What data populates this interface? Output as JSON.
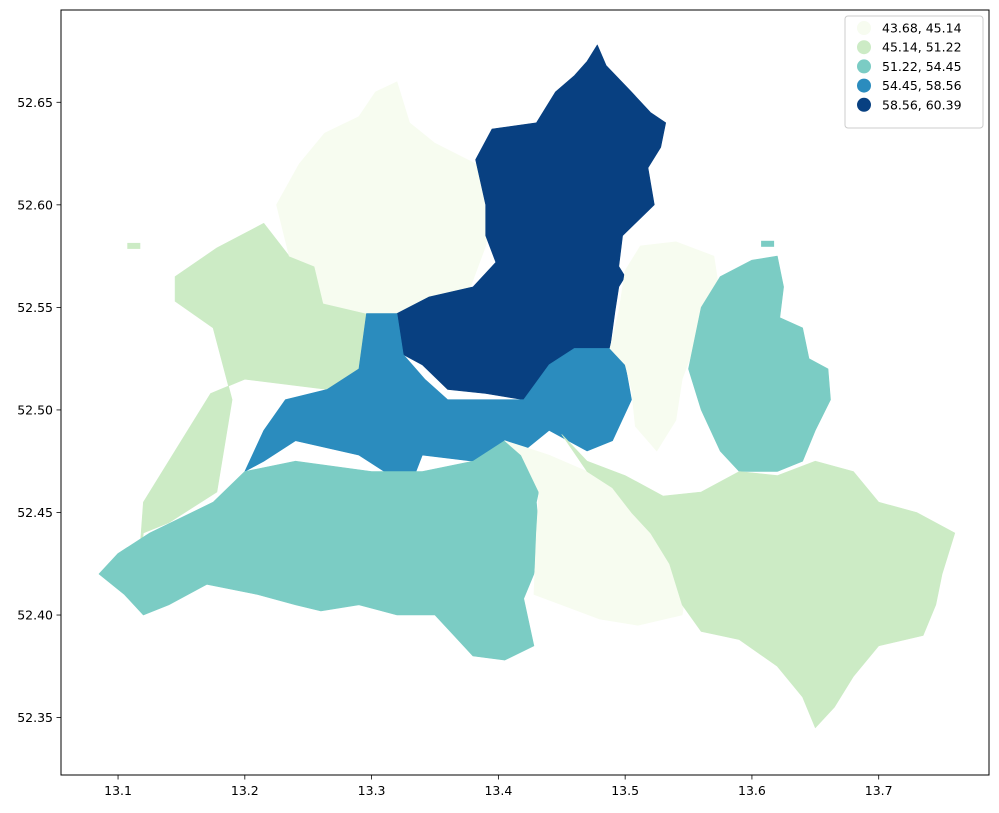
{
  "chart_data": {
    "type": "choropleth",
    "region": "Berlin",
    "xlim": [
      13.055,
      13.787
    ],
    "ylim": [
      52.322,
      52.695
    ],
    "x_ticks": [
      13.1,
      13.2,
      13.3,
      13.4,
      13.5,
      13.6,
      13.7
    ],
    "x_tick_labels": [
      "13.1",
      "13.2",
      "13.3",
      "13.4",
      "13.5",
      "13.6",
      "13.7"
    ],
    "y_ticks": [
      52.35,
      52.4,
      52.45,
      52.5,
      52.55,
      52.6,
      52.65
    ],
    "y_tick_labels": [
      "52.35",
      "52.40",
      "52.45",
      "52.50",
      "52.55",
      "52.60",
      "52.65"
    ],
    "grid": false,
    "legend_position": "top-right",
    "classes": [
      {
        "label": "43.68, 45.14",
        "range": [
          43.68,
          45.14
        ],
        "color": "#f7fcf0"
      },
      {
        "label": "45.14, 51.22",
        "range": [
          45.14,
          51.22
        ],
        "color": "#ccebc5"
      },
      {
        "label": "51.22, 54.45",
        "range": [
          51.22,
          54.45
        ],
        "color": "#7bccc4"
      },
      {
        "label": "54.45, 58.56",
        "range": [
          54.45,
          58.56
        ],
        "color": "#2b8cbe"
      },
      {
        "label": "58.56, 60.39",
        "range": [
          58.56,
          60.39
        ],
        "color": "#084081"
      }
    ],
    "regions": [
      {
        "class": 1,
        "outline": [
          [
            13.116,
            52.421
          ],
          [
            13.12,
            52.44
          ],
          [
            13.14,
            52.445
          ],
          [
            13.178,
            52.46
          ],
          [
            13.19,
            52.505
          ],
          [
            13.175,
            52.54
          ],
          [
            13.145,
            52.553
          ],
          [
            13.145,
            52.565
          ],
          [
            13.178,
            52.579
          ],
          [
            13.215,
            52.591
          ],
          [
            13.235,
            52.575
          ],
          [
            13.255,
            52.57
          ],
          [
            13.262,
            52.552
          ],
          [
            13.296,
            52.547
          ],
          [
            13.325,
            52.527
          ],
          [
            13.29,
            52.508
          ],
          [
            13.265,
            52.51
          ],
          [
            13.2,
            52.515
          ],
          [
            13.173,
            52.508
          ],
          [
            13.15,
            52.485
          ],
          [
            13.12,
            52.455
          ],
          [
            13.116,
            52.421
          ]
        ]
      },
      {
        "class": 0,
        "outline": [
          [
            13.225,
            52.6
          ],
          [
            13.243,
            52.62
          ],
          [
            13.263,
            52.635
          ],
          [
            13.29,
            52.643
          ],
          [
            13.303,
            52.655
          ],
          [
            13.32,
            52.66
          ],
          [
            13.33,
            52.64
          ],
          [
            13.35,
            52.63
          ],
          [
            13.382,
            52.62
          ],
          [
            13.4,
            52.612
          ],
          [
            13.39,
            52.58
          ],
          [
            13.378,
            52.56
          ],
          [
            13.37,
            52.55
          ],
          [
            13.34,
            52.546
          ],
          [
            13.32,
            52.547
          ],
          [
            13.296,
            52.547
          ],
          [
            13.262,
            52.552
          ],
          [
            13.255,
            52.57
          ],
          [
            13.235,
            52.575
          ],
          [
            13.225,
            52.6
          ]
        ]
      },
      {
        "class": 4,
        "outline": [
          [
            13.32,
            52.547
          ],
          [
            13.345,
            52.555
          ],
          [
            13.38,
            52.56
          ],
          [
            13.398,
            52.572
          ],
          [
            13.39,
            52.585
          ],
          [
            13.39,
            52.6
          ],
          [
            13.382,
            52.622
          ],
          [
            13.395,
            52.637
          ],
          [
            13.43,
            52.64
          ],
          [
            13.445,
            52.655
          ],
          [
            13.46,
            52.663
          ],
          [
            13.47,
            52.67
          ],
          [
            13.478,
            52.678
          ],
          [
            13.485,
            52.668
          ],
          [
            13.505,
            52.655
          ],
          [
            13.52,
            52.645
          ],
          [
            13.532,
            52.64
          ],
          [
            13.528,
            52.628
          ],
          [
            13.518,
            52.618
          ],
          [
            13.523,
            52.6
          ],
          [
            13.498,
            52.585
          ],
          [
            13.495,
            52.57
          ],
          [
            13.5,
            52.565
          ],
          [
            13.495,
            52.56
          ],
          [
            13.492,
            52.548
          ],
          [
            13.488,
            52.53
          ],
          [
            13.475,
            52.52
          ],
          [
            13.46,
            52.515
          ],
          [
            13.44,
            52.51
          ],
          [
            13.42,
            52.505
          ],
          [
            13.39,
            52.508
          ],
          [
            13.36,
            52.51
          ],
          [
            13.34,
            52.522
          ],
          [
            13.325,
            52.527
          ],
          [
            13.32,
            52.547
          ]
        ]
      },
      {
        "class": 3,
        "outline": [
          [
            13.2,
            52.47
          ],
          [
            13.215,
            52.475
          ],
          [
            13.24,
            52.485
          ],
          [
            13.29,
            52.478
          ],
          [
            13.31,
            52.47
          ],
          [
            13.335,
            52.47
          ],
          [
            13.34,
            52.478
          ],
          [
            13.38,
            52.475
          ],
          [
            13.405,
            52.485
          ],
          [
            13.42,
            52.48
          ],
          [
            13.44,
            52.49
          ],
          [
            13.47,
            52.48
          ],
          [
            13.49,
            52.485
          ],
          [
            13.505,
            52.505
          ],
          [
            13.5,
            52.522
          ],
          [
            13.488,
            52.53
          ],
          [
            13.46,
            52.53
          ],
          [
            13.44,
            52.522
          ],
          [
            13.42,
            52.505
          ],
          [
            13.395,
            52.505
          ],
          [
            13.36,
            52.505
          ],
          [
            13.342,
            52.515
          ],
          [
            13.325,
            52.527
          ],
          [
            13.32,
            52.547
          ],
          [
            13.296,
            52.547
          ],
          [
            13.29,
            52.52
          ],
          [
            13.265,
            52.51
          ],
          [
            13.232,
            52.505
          ],
          [
            13.215,
            52.49
          ],
          [
            13.2,
            52.47
          ]
        ]
      },
      {
        "class": 2,
        "outline": [
          [
            13.085,
            52.42
          ],
          [
            13.1,
            52.43
          ],
          [
            13.125,
            52.44
          ],
          [
            13.175,
            52.455
          ],
          [
            13.2,
            52.47
          ],
          [
            13.24,
            52.475
          ],
          [
            13.3,
            52.47
          ],
          [
            13.34,
            52.47
          ],
          [
            13.38,
            52.475
          ],
          [
            13.405,
            52.485
          ],
          [
            13.42,
            52.48
          ],
          [
            13.438,
            52.478
          ],
          [
            13.43,
            52.455
          ],
          [
            13.432,
            52.44
          ],
          [
            13.428,
            52.42
          ],
          [
            13.42,
            52.408
          ],
          [
            13.428,
            52.385
          ],
          [
            13.405,
            52.378
          ],
          [
            13.38,
            52.38
          ],
          [
            13.35,
            52.4
          ],
          [
            13.32,
            52.4
          ],
          [
            13.29,
            52.405
          ],
          [
            13.26,
            52.402
          ],
          [
            13.24,
            52.405
          ],
          [
            13.21,
            52.41
          ],
          [
            13.17,
            52.415
          ],
          [
            13.14,
            52.405
          ],
          [
            13.12,
            52.4
          ],
          [
            13.105,
            52.41
          ],
          [
            13.085,
            52.42
          ]
        ]
      },
      {
        "class": 0,
        "outline": [
          [
            13.405,
            52.485
          ],
          [
            13.42,
            52.482
          ],
          [
            13.44,
            52.478
          ],
          [
            13.47,
            52.47
          ],
          [
            13.495,
            52.462
          ],
          [
            13.515,
            52.458
          ],
          [
            13.535,
            52.44
          ],
          [
            13.55,
            52.42
          ],
          [
            13.545,
            52.4
          ],
          [
            13.51,
            52.395
          ],
          [
            13.48,
            52.398
          ],
          [
            13.45,
            52.405
          ],
          [
            13.428,
            52.41
          ],
          [
            13.43,
            52.44
          ],
          [
            13.432,
            52.46
          ],
          [
            13.418,
            52.478
          ],
          [
            13.405,
            52.485
          ]
        ]
      },
      {
        "class": 0,
        "outline": [
          [
            13.488,
            52.53
          ],
          [
            13.495,
            52.548
          ],
          [
            13.5,
            52.568
          ],
          [
            13.512,
            52.58
          ],
          [
            13.54,
            52.582
          ],
          [
            13.57,
            52.575
          ],
          [
            13.575,
            52.555
          ],
          [
            13.56,
            52.54
          ],
          [
            13.545,
            52.515
          ],
          [
            13.54,
            52.495
          ],
          [
            13.525,
            52.48
          ],
          [
            13.508,
            52.492
          ],
          [
            13.505,
            52.51
          ],
          [
            13.5,
            52.522
          ],
          [
            13.488,
            52.53
          ]
        ]
      },
      {
        "class": 2,
        "outline": [
          [
            13.56,
            52.55
          ],
          [
            13.575,
            52.565
          ],
          [
            13.6,
            52.573
          ],
          [
            13.62,
            52.575
          ],
          [
            13.625,
            52.56
          ],
          [
            13.622,
            52.545
          ],
          [
            13.64,
            52.54
          ],
          [
            13.645,
            52.525
          ],
          [
            13.66,
            52.52
          ],
          [
            13.662,
            52.505
          ],
          [
            13.65,
            52.49
          ],
          [
            13.64,
            52.475
          ],
          [
            13.62,
            52.47
          ],
          [
            13.59,
            52.47
          ],
          [
            13.575,
            52.48
          ],
          [
            13.56,
            52.5
          ],
          [
            13.55,
            52.52
          ],
          [
            13.56,
            52.55
          ]
        ]
      },
      {
        "class": 1,
        "outline": [
          [
            13.45,
            52.488
          ],
          [
            13.47,
            52.475
          ],
          [
            13.5,
            52.468
          ],
          [
            13.53,
            52.458
          ],
          [
            13.56,
            52.46
          ],
          [
            13.59,
            52.47
          ],
          [
            13.62,
            52.468
          ],
          [
            13.65,
            52.475
          ],
          [
            13.68,
            52.47
          ],
          [
            13.7,
            52.455
          ],
          [
            13.73,
            52.45
          ],
          [
            13.76,
            52.44
          ],
          [
            13.75,
            52.42
          ],
          [
            13.745,
            52.405
          ],
          [
            13.735,
            52.39
          ],
          [
            13.7,
            52.385
          ],
          [
            13.68,
            52.37
          ],
          [
            13.665,
            52.355
          ],
          [
            13.65,
            52.345
          ],
          [
            13.64,
            52.36
          ],
          [
            13.62,
            52.375
          ],
          [
            13.59,
            52.388
          ],
          [
            13.56,
            52.392
          ],
          [
            13.545,
            52.405
          ],
          [
            13.535,
            52.425
          ],
          [
            13.52,
            52.44
          ],
          [
            13.505,
            52.45
          ],
          [
            13.49,
            52.462
          ],
          [
            13.47,
            52.47
          ],
          [
            13.45,
            52.488
          ]
        ]
      }
    ],
    "islands": [
      {
        "class": 2,
        "center": [
          13.612,
          52.581
        ]
      },
      {
        "class": 1,
        "center": [
          13.112,
          52.58
        ]
      }
    ]
  }
}
